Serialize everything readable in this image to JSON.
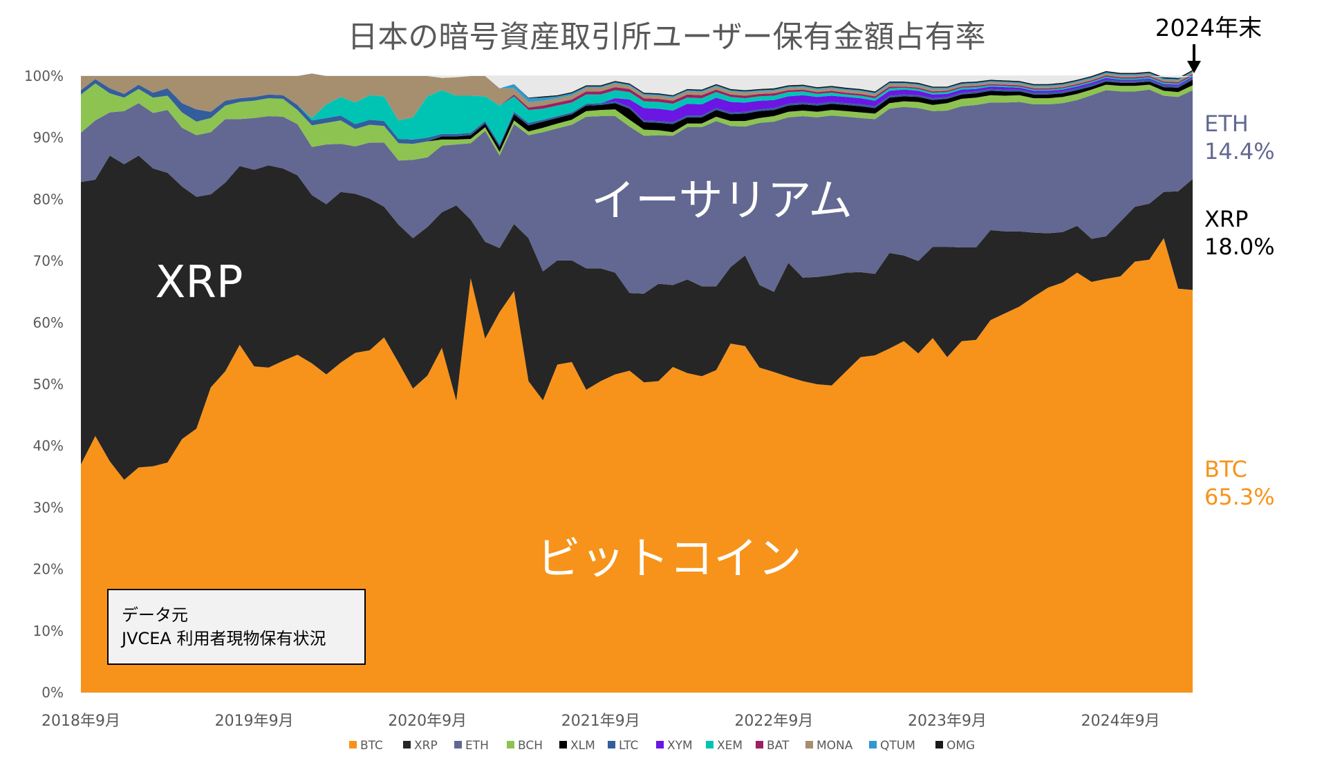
{
  "chart_data": {
    "type": "area",
    "title": "日本の暗号資産取引所ユーザー保有金額占有率",
    "stacked": true,
    "normalized": true,
    "x_ticks": [
      "2018年9月",
      "2019年9月",
      "2020年9月",
      "2021年9月",
      "2022年9月",
      "2023年9月",
      "2024年9月"
    ],
    "y_ticks": [
      "0%",
      "10%",
      "20%",
      "30%",
      "40%",
      "50%",
      "60%",
      "70%",
      "80%",
      "90%",
      "100%"
    ],
    "ylim": [
      0,
      100
    ],
    "x_start": "2018-09",
    "x_end": "2024-12",
    "series": [
      {
        "name": "BTC",
        "color": "#F7931A",
        "values": [
          37.0,
          41.6,
          37.5,
          34.5,
          36.5,
          36.7,
          37.3,
          41.1,
          42.8,
          49.5,
          52.1,
          56.4,
          52.9,
          52.7,
          53.8,
          54.8,
          53.4,
          51.6,
          53.5,
          55.1,
          55.5,
          57.6,
          53.5,
          49.3,
          51.4,
          55.9,
          47.3,
          67.2,
          57.4,
          61.7,
          65.1,
          50.5,
          47.4,
          53.2,
          53.6,
          49.1,
          50.5,
          51.6,
          52.2,
          50.3,
          50.5,
          52.8,
          51.8,
          51.3,
          52.3,
          56.6,
          56.2,
          52.7,
          52.0,
          51.2,
          50.5,
          50.0,
          49.8,
          52.1,
          54.4,
          54.7,
          55.8,
          57.0,
          55.0,
          57.5,
          54.4,
          57.0,
          57.2,
          60.4,
          61.5,
          62.6,
          64.2,
          65.7,
          66.5,
          68.1,
          66.6,
          67.1,
          67.5,
          69.9,
          70.2,
          73.7,
          65.5,
          65.3
        ]
      },
      {
        "name": "XRP",
        "color": "#262626",
        "values": [
          45.8,
          41.6,
          49.6,
          51.2,
          50.6,
          48.3,
          47.0,
          41.0,
          37.6,
          31.3,
          30.6,
          29.0,
          31.9,
          32.8,
          31.2,
          29.1,
          27.3,
          27.6,
          27.7,
          25.8,
          24.6,
          21.2,
          22.4,
          24.4,
          24.1,
          22.0,
          31.7,
          9.5,
          15.7,
          10.4,
          10.9,
          23.2,
          20.9,
          16.9,
          16.5,
          19.7,
          18.3,
          16.5,
          12.6,
          14.4,
          15.8,
          13.3,
          15.2,
          14.6,
          13.6,
          12.4,
          14.7,
          13.4,
          13.0,
          18.5,
          16.8,
          17.4,
          17.9,
          16.0,
          13.8,
          13.2,
          15.5,
          13.9,
          15.0,
          14.8,
          17.9,
          15.2,
          15.0,
          14.6,
          13.3,
          12.2,
          10.4,
          8.8,
          8.2,
          7.6,
          7.0,
          6.9,
          8.9,
          8.9,
          9.1,
          7.5,
          15.8,
          18.0
        ]
      },
      {
        "name": "ETH",
        "color": "#626891",
        "values": [
          8.0,
          9.6,
          7.0,
          8.6,
          8.5,
          9.0,
          10.2,
          9.5,
          10.0,
          10.1,
          10.3,
          7.6,
          8.4,
          8.0,
          8.4,
          8.3,
          7.8,
          9.7,
          7.8,
          7.7,
          9.1,
          10.4,
          10.4,
          12.7,
          11.3,
          10.8,
          9.9,
          12.4,
          18.0,
          15.0,
          16.2,
          16.7,
          22.6,
          21.4,
          22.0,
          24.6,
          24.7,
          25.4,
          27.0,
          25.6,
          24.1,
          24.2,
          24.7,
          25.8,
          26.8,
          22.9,
          20.9,
          26.3,
          27.6,
          23.6,
          26.2,
          25.9,
          25.9,
          25.3,
          25.0,
          25.1,
          23.4,
          24.1,
          24.8,
          22.0,
          22.1,
          22.9,
          23.1,
          20.7,
          20.9,
          21.0,
          20.8,
          20.9,
          20.9,
          20.4,
          23.3,
          23.7,
          21.1,
          18.7,
          18.5,
          15.6,
          15.3,
          14.4
        ]
      },
      {
        "name": "BCH",
        "color": "#8DC351",
        "values": [
          6.2,
          6.0,
          3.1,
          2.2,
          2.3,
          2.5,
          2.3,
          2.5,
          2.2,
          2.3,
          2.2,
          2.8,
          2.8,
          2.9,
          2.9,
          2.3,
          3.5,
          3.5,
          3.8,
          2.8,
          2.9,
          2.7,
          2.8,
          2.6,
          2.6,
          1.0,
          0.8,
          0.7,
          0.6,
          0.6,
          0.6,
          0.6,
          0.7,
          0.8,
          0.8,
          0.9,
          1.0,
          1.1,
          1.1,
          1.0,
          0.8,
          0.6,
          0.6,
          0.6,
          0.7,
          0.8,
          0.9,
          0.8,
          0.9,
          0.9,
          0.9,
          0.9,
          0.9,
          0.9,
          0.9,
          0.9,
          0.9,
          0.9,
          1.0,
          1.0,
          1.2,
          1.2,
          1.2,
          1.2,
          1.1,
          1.1,
          1.0,
          1.0,
          1.0,
          1.0,
          0.9,
          0.9,
          0.9,
          0.9,
          0.8,
          0.8,
          0.8,
          0.8
        ]
      },
      {
        "name": "XLM",
        "color": "#000000",
        "values": [
          0,
          0,
          0,
          0,
          0,
          0,
          0,
          0,
          0,
          0,
          0,
          0,
          0,
          0,
          0,
          0,
          0,
          0,
          0,
          0,
          0,
          0,
          0,
          0,
          0,
          0.5,
          0.5,
          0.6,
          0.6,
          0.8,
          1.0,
          1.0,
          1.0,
          0.9,
          0.9,
          0.9,
          0.8,
          1.0,
          1.8,
          1.2,
          1.2,
          1.3,
          1.0,
          1.0,
          1.1,
          1.1,
          1.2,
          1.1,
          1.0,
          1.0,
          1.0,
          1.0,
          1.0,
          1.0,
          1.0,
          0.9,
          0.9,
          0.8,
          0.8,
          0.8,
          0.7,
          0.7,
          0.7,
          0.7,
          0.7,
          0.6,
          0.6,
          0.6,
          0.6,
          0.6,
          0.5,
          0.5,
          0.5,
          0.5,
          0.5,
          0.6,
          0.7,
          0.9
        ]
      },
      {
        "name": "LTC",
        "color": "#345D9D",
        "values": [
          0.7,
          0.7,
          0.8,
          0.6,
          0.7,
          0.8,
          1.2,
          1.5,
          2.0,
          1.0,
          0.8,
          0.6,
          0.6,
          0.6,
          0.6,
          0.8,
          0.8,
          0.8,
          0.8,
          0.8,
          0.8,
          0.8,
          0.7,
          0.7,
          0.6,
          0.4,
          0.4,
          0.4,
          0.4,
          0.4,
          0.4,
          0.4,
          0.3,
          0.3,
          0.3,
          0.3,
          0.3,
          0.3,
          0.3,
          0.3,
          0.3,
          0.3,
          0.3,
          0.3,
          0.3,
          0.3,
          0.3,
          0.3,
          0.3,
          0.3,
          0.3,
          0.3,
          0.3,
          0.3,
          0.3,
          0.3,
          0.3,
          0.3,
          0.3,
          0.3,
          0.3,
          0.3,
          0.3,
          0.3,
          0.3,
          0.3,
          0.3,
          0.3,
          0.3,
          0.3,
          0.3,
          0.3,
          0.3,
          0.3,
          0.3,
          0.3,
          0.3,
          0.3
        ]
      },
      {
        "name": "XYM",
        "color": "#6B16E3",
        "values": [
          0,
          0,
          0,
          0,
          0,
          0,
          0,
          0,
          0,
          0,
          0,
          0,
          0,
          0,
          0,
          0,
          0,
          0,
          0,
          0,
          0,
          0,
          0,
          0,
          0,
          0,
          0,
          0,
          0,
          0,
          0,
          0,
          0,
          0,
          0,
          0,
          0,
          0.5,
          1.2,
          2.0,
          2.0,
          1.9,
          1.9,
          1.8,
          1.7,
          1.7,
          1.5,
          1.4,
          1.3,
          1.2,
          1.2,
          1.1,
          1.0,
          1.0,
          1.0,
          0.9,
          0.8,
          0.8,
          0.7,
          0.6,
          0.5,
          0.5,
          0.4,
          0.4,
          0.4,
          0.3,
          0.3,
          0.3,
          0.3,
          0.3,
          0.3,
          0.3,
          0.2,
          0.2,
          0.2,
          0.2,
          0.2,
          0.2
        ]
      },
      {
        "name": "XEM",
        "color": "#00C4B3",
        "values": [
          0,
          0,
          0,
          0,
          0,
          0,
          0,
          0,
          0,
          0,
          0,
          0,
          0,
          0,
          0,
          0,
          0.4,
          2.2,
          3.0,
          3.5,
          4.0,
          4.0,
          3.0,
          3.6,
          6.7,
          7.1,
          6.2,
          6.0,
          4.0,
          6.3,
          2.5,
          2.1,
          1.8,
          1.7,
          1.6,
          1.5,
          1.4,
          1.3,
          1.2,
          1.1,
          1.1,
          1.1,
          1.0,
          1.0,
          0.9,
          0.8,
          0.7,
          0.7,
          0.7,
          0.7,
          0.6,
          0.5,
          0.5,
          0.4,
          0.4,
          0.4,
          0.4,
          0.3,
          0.3,
          0.3,
          0.3,
          0.3,
          0.3,
          0.2,
          0.2,
          0.2,
          0.2,
          0.2,
          0.2,
          0.2,
          0.2,
          0.2,
          0.2,
          0.2,
          0.2,
          0.2,
          0.2,
          0.2
        ]
      },
      {
        "name": "BAT",
        "color": "#9E1F63",
        "values": [
          0,
          0,
          0,
          0,
          0,
          0,
          0,
          0,
          0,
          0,
          0,
          0,
          0,
          0,
          0,
          0,
          0,
          0,
          0,
          0,
          0,
          0,
          0,
          0,
          0,
          0,
          0,
          0,
          0,
          0,
          0.3,
          0.4,
          0.5,
          0.5,
          0.5,
          0.5,
          0.5,
          0.5,
          0.5,
          0.5,
          0.5,
          0.5,
          0.5,
          0.5,
          0.4,
          0.4,
          0.4,
          0.4,
          0.4,
          0.3,
          0.3,
          0.3,
          0.3,
          0.3,
          0.3,
          0.3,
          0.3,
          0.2,
          0.2,
          0.2,
          0.2,
          0.2,
          0.2,
          0.2,
          0.2,
          0.2,
          0.2,
          0.2,
          0.2,
          0.2,
          0.2,
          0.2,
          0.2,
          0.2,
          0.2,
          0.2,
          0.2,
          0.2
        ]
      },
      {
        "name": "MONA",
        "color": "#A58F6F",
        "values": [
          2.3,
          0.5,
          2.0,
          2.9,
          1.4,
          2.7,
          2.0,
          4.4,
          5.4,
          5.8,
          4.0,
          3.6,
          3.4,
          3.0,
          3.1,
          4.7,
          7.2,
          4.6,
          3.4,
          4.3,
          3.1,
          3.3,
          7.2,
          6.7,
          3.3,
          2.0,
          3.0,
          3.2,
          3.3,
          2.8,
          1.0,
          0.9,
          0.8,
          0.7,
          0.7,
          0.6,
          0.6,
          0.6,
          0.5,
          0.5,
          0.5,
          0.5,
          0.5,
          0.5,
          0.5,
          0.5,
          0.5,
          0.4,
          0.4,
          0.4,
          0.4,
          0.4,
          0.4,
          0.4,
          0.4,
          0.4,
          0.4,
          0.4,
          0.4,
          0.4,
          0.3,
          0.3,
          0.3,
          0.3,
          0.3,
          0.3,
          0.3,
          0.3,
          0.3,
          0.3,
          0.3,
          0.3,
          0.3,
          0.3,
          0.3,
          0.3,
          0.3,
          0.3
        ]
      },
      {
        "name": "QTUM",
        "color": "#2E9AD0",
        "values": [
          0,
          0,
          0,
          0,
          0,
          0,
          0,
          0,
          0,
          0,
          0,
          0,
          0,
          0,
          0,
          0,
          0,
          0,
          0,
          0,
          0,
          0,
          0,
          0,
          0,
          0,
          0,
          0,
          0,
          0,
          0.7,
          0.6,
          0.5,
          0.3,
          0.3,
          0.2,
          0.2,
          0.2,
          0.2,
          0.2,
          0.2,
          0.2,
          0.2,
          0.2,
          0.2,
          0.2,
          0.2,
          0.2,
          0.2,
          0.2,
          0.2,
          0.2,
          0.2,
          0.2,
          0.2,
          0.2,
          0.2,
          0.2,
          0.2,
          0.2,
          0.2,
          0.2,
          0.2,
          0.2,
          0.2,
          0.2,
          0.2,
          0.2,
          0.2,
          0.2,
          0.2,
          0.2,
          0.2,
          0.2,
          0.2,
          0.2,
          0.2,
          0.2
        ]
      },
      {
        "name": "OMG",
        "color": "#1A1A1A",
        "values": [
          0,
          0,
          0,
          0,
          0,
          0,
          0,
          0,
          0,
          0,
          0,
          0,
          0,
          0,
          0,
          0,
          0,
          0,
          0,
          0,
          0,
          0,
          0,
          0,
          0,
          0,
          0,
          0,
          0,
          0,
          0,
          0.1,
          0.2,
          0.2,
          0.2,
          0.2,
          0.2,
          0.2,
          0.2,
          0.2,
          0.2,
          0.2,
          0.2,
          0.2,
          0.2,
          0.2,
          0.2,
          0.2,
          0.2,
          0.2,
          0.2,
          0.2,
          0.2,
          0.2,
          0.2,
          0.2,
          0.2,
          0.2,
          0.2,
          0.2,
          0.2,
          0.2,
          0.2,
          0.2,
          0.2,
          0.2,
          0.2,
          0.2,
          0.2,
          0.2,
          0.2,
          0.2,
          0.2,
          0.2,
          0.2,
          0.2,
          0.2,
          0.2
        ]
      }
    ],
    "annotations": {
      "in_chart": [
        {
          "text": "XRP",
          "series": "XRP"
        },
        {
          "text": "イーサリアム",
          "series": "ETH"
        },
        {
          "text": "ビットコイン",
          "series": "BTC"
        }
      ],
      "end_labels": [
        {
          "name": "ETH",
          "value": "14.4%",
          "color": "#626891"
        },
        {
          "name": "XRP",
          "value": "18.0%",
          "color": "#000000"
        },
        {
          "name": "BTC",
          "value": "65.3%",
          "color": "#F7931A"
        }
      ],
      "marker_label": "2024年末"
    },
    "source_box": {
      "line1": "データ元",
      "line2": "JVCEA 利用者現物保有状況"
    }
  }
}
